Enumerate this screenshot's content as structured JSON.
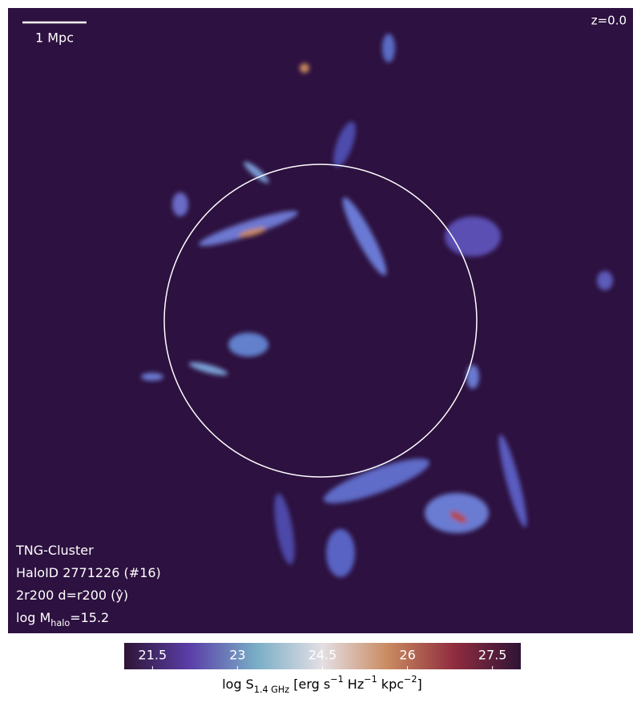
{
  "chart_data": {
    "type": "image",
    "scale_bar_label": "1 Mpc",
    "redshift_label": "z=0.0",
    "annotations": [
      [
        {
          "text": "TNG-Cluster"
        }
      ],
      [
        {
          "text": "HaloID 2771226 (#16)"
        }
      ],
      [
        {
          "text": "2r200 d=r200 (ŷ)"
        }
      ],
      [
        {
          "text": "log M"
        },
        {
          "text": "halo",
          "sub": true
        },
        {
          "text": "=15.2"
        }
      ]
    ],
    "colorbar": {
      "label": [
        {
          "text": "log S"
        },
        {
          "text": "1.4 GHz",
          "sub": true
        },
        {
          "text": " [erg s"
        },
        {
          "text": "−1",
          "sup": true
        },
        {
          "text": " Hz"
        },
        {
          "text": "−1",
          "sup": true
        },
        {
          "text": " kpc"
        },
        {
          "text": "−2",
          "sup": true
        },
        {
          "text": "]"
        }
      ],
      "clim": [
        21.0,
        28.0
      ],
      "ticks": [
        21.5,
        23.0,
        24.5,
        26.0,
        27.5
      ],
      "colormap": [
        "#2f1436",
        "#5b3fa9",
        "#79aec6",
        "#e4dfe4",
        "#c8895f",
        "#902c3f",
        "#2f1436"
      ]
    }
  }
}
